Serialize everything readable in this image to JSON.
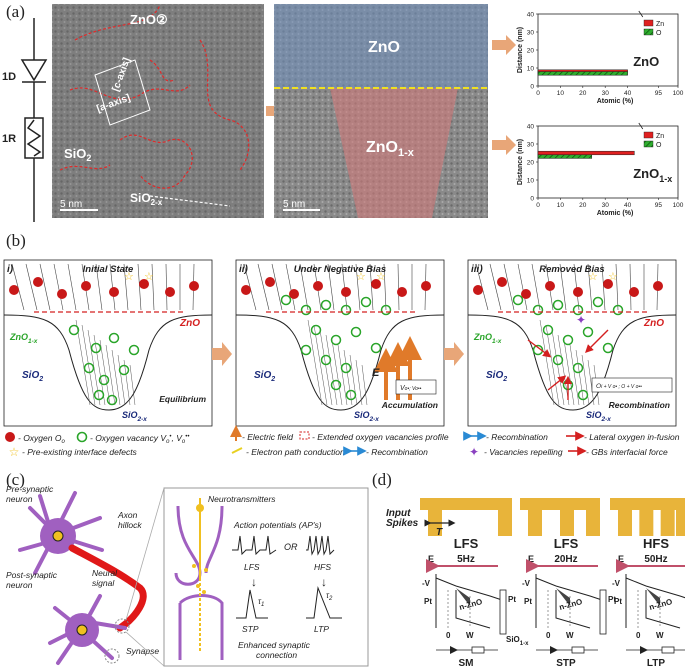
{
  "panels": {
    "a": "(a)",
    "b": "(b)",
    "c": "(c)",
    "d": "(d)"
  },
  "panel_a": {
    "circuit": {
      "diode": "1D",
      "resistor": "1R"
    },
    "tem_left": {
      "zno2": "ZnO②",
      "c_axis": "[c-axis]",
      "a_axis": "[a-axis]",
      "sio2": "SiO",
      "sio2_sub": "2",
      "sio2x": "SiO",
      "sio2x_sub": "2-x",
      "scale": "5  nm"
    },
    "tem_right": {
      "zno": "ZnO",
      "zno1x": "ZnO",
      "zno1x_sub": "1-x",
      "scale": "5  nm"
    },
    "plot_top": {
      "legend_zn": "Zn",
      "legend_o": "O",
      "title": "ZnO",
      "ylabel": "Distance (nm)",
      "xlabel": "Atomic (%)"
    },
    "plot_bottom": {
      "legend_zn": "Zn",
      "legend_o": "O",
      "title": "ZnO",
      "title_sub": "1-x",
      "ylabel": "Distance (nm)",
      "xlabel": "Atomic (%)"
    }
  },
  "chart_data": [
    {
      "type": "bar",
      "title": "ZnO",
      "xlabel": "Atomic (%)",
      "ylabel": "Distance (nm)",
      "xlim": [
        0,
        100
      ],
      "ylim": [
        0,
        40
      ],
      "x_ticks": [
        "0",
        "10",
        "20",
        "30",
        "40",
        "95",
        "100"
      ],
      "y_ticks": [
        "0",
        "10",
        "20",
        "30",
        "40"
      ],
      "series": [
        {
          "name": "Zn",
          "color": "#e02020",
          "bar_from_y": 7,
          "bar_to_y": 9,
          "value": 40
        },
        {
          "name": "O",
          "color": "#22a822",
          "bar_from_y": 6,
          "bar_to_y": 8,
          "value": 40
        }
      ]
    },
    {
      "type": "bar",
      "title": "ZnO1-x",
      "xlabel": "Atomic (%)",
      "ylabel": "Distance (nm)",
      "xlim": [
        0,
        100
      ],
      "ylim": [
        0,
        40
      ],
      "x_ticks": [
        "0",
        "10",
        "20",
        "30",
        "40",
        "95",
        "100"
      ],
      "y_ticks": [
        "0",
        "10",
        "20",
        "30",
        "40"
      ],
      "series": [
        {
          "name": "Zn",
          "color": "#e02020",
          "bar_from_y": 24,
          "bar_to_y": 26,
          "value": 43
        },
        {
          "name": "O",
          "color": "#22a822",
          "bar_from_y": 22,
          "bar_to_y": 24,
          "value": 24
        }
      ]
    }
  ],
  "panel_b": {
    "i": {
      "num": "i)",
      "title": "Initial State",
      "zno": "ZnO",
      "zno1x": "ZnO",
      "zno1x_sub": "1-x",
      "sio2": "SiO",
      "sio2_sub": "2",
      "sio2x": "SiO",
      "sio2x_sub": "2-x",
      "status": "Equilibrium"
    },
    "ii": {
      "num": "ii)",
      "title": "Under Negative Bias",
      "e": "E",
      "sio2": "SiO",
      "sio2_sub": "2",
      "sio2x": "SiO",
      "sio2x_sub": "2-x",
      "box": "V",
      "status": "Accumulation"
    },
    "iii": {
      "num": "iii)",
      "title": "Removed Bias",
      "zno": "ZnO",
      "zno1x": "ZnO",
      "zno1x_sub": "1-x",
      "sio2": "SiO",
      "sio2_sub": "2",
      "sio2x": "SiO",
      "sio2x_sub": "2-x",
      "box": "O",
      "status": "Recombination"
    },
    "legend": {
      "oxygen": "- Oxygen O",
      "oxygen_sub": "o",
      "vacancy": "- Oxygen vacancy V",
      "vacancy_tail": ", V",
      "defects": "- Pre-existing interface defects",
      "efield": "- Electric field",
      "extended": "- Extended oxygen vacancies profile",
      "electron_path": "- Electron path conduction",
      "recomb1": "- Recombination",
      "recomb2": "- Recombination",
      "repelling": "- Vacancies repelling",
      "lateral": "- Lateral oxygen in-fusion",
      "gbs": "- GBs interfacial force"
    }
  },
  "panel_c": {
    "pre": "Pre-synaptic\nneuron",
    "axon": "Axon\nhillock",
    "neural": "Neural\nsignal",
    "post": "Post-synaptic\nneuron",
    "synapse": "Synapse",
    "neurotransmitters": "Neurotransmitters",
    "ap": "Action potentials (AP's)",
    "or": "OR",
    "lfs": "LFS",
    "hfs": "HFS",
    "stp": "STP",
    "ltp": "LTP",
    "tau1": "τ",
    "tau2": "τ",
    "enhanced": "Enhanced synaptic\nconnection"
  },
  "panel_d": {
    "input": "Input",
    "spikes": "Spikes",
    "t": "T",
    "cols": [
      {
        "mode": "LFS",
        "freq": "5Hz",
        "label": "SM"
      },
      {
        "mode": "LFS",
        "freq": "20Hz",
        "label": "STP"
      },
      {
        "mode": "HFS",
        "freq": "50Hz",
        "label": "LTP"
      }
    ],
    "e": "E",
    "pt": "Pt",
    "nzno": "n-ZnO",
    "zero": "0",
    "w": "W",
    "minus_v": "-V",
    "sio": "SiO",
    "sio_sub": "1-x"
  },
  "colors": {
    "zno_red": "#d42020",
    "vacancy_green": "#2aa52a",
    "arrow_orange": "#e07a2a",
    "sio2_blue": "#1a2a7a",
    "pulse_gold": "#e8b43a",
    "neuron_purple": "#a060c0",
    "axon_red": "#e01818"
  }
}
